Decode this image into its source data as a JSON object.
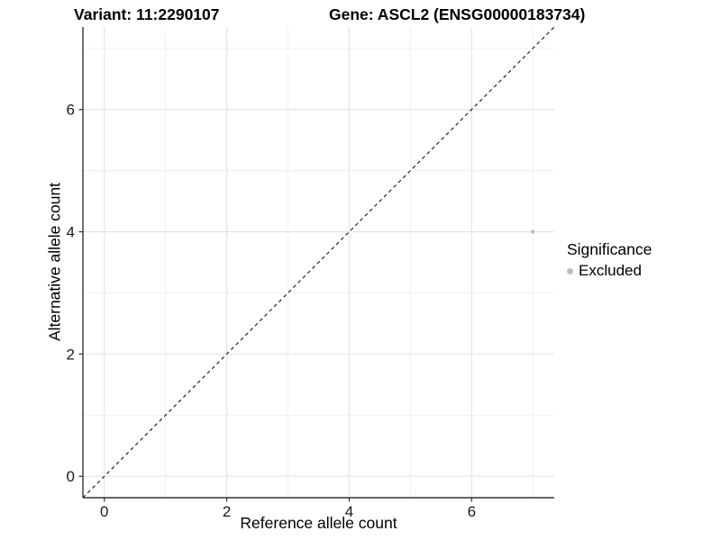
{
  "figure": {
    "title_left": "Variant: 11:2290107",
    "title_right": "Gene: ASCL2 (ENSG00000183734)"
  },
  "chart_data": {
    "type": "scatter",
    "title": "Variant: 11:2290107 — Gene: ASCL2 (ENSG00000183734)",
    "xlabel": "Reference allele count",
    "ylabel": "Alternative allele count",
    "xlim": [
      -0.35,
      7.35
    ],
    "ylim": [
      -0.35,
      7.35
    ],
    "x_ticks": [
      0,
      2,
      4,
      6
    ],
    "y_ticks": [
      0,
      2,
      4,
      6
    ],
    "x_minor_ticks": [
      1,
      3,
      5,
      7
    ],
    "y_minor_ticks": [
      1,
      3,
      5,
      7
    ],
    "grid": true,
    "reference_line": {
      "kind": "identity y=x",
      "style": "dashed",
      "color": "#111111"
    },
    "series": [
      {
        "name": "Excluded",
        "color": "#bdbdbd",
        "points": [
          {
            "x": 7,
            "y": 4
          }
        ],
        "point_radius": 2.0
      }
    ],
    "legend": {
      "title": "Significance",
      "position": "right",
      "items": [
        {
          "label": "Excluded",
          "color": "#bdbdbd"
        }
      ]
    },
    "style": {
      "background": "#ffffff",
      "grid_major_color": "#e3e3e3",
      "grid_minor_color": "#f0f0f0",
      "axis_line_color": "#333333",
      "tick_color": "#333333",
      "tick_label_color": "#1a1a1a"
    }
  }
}
